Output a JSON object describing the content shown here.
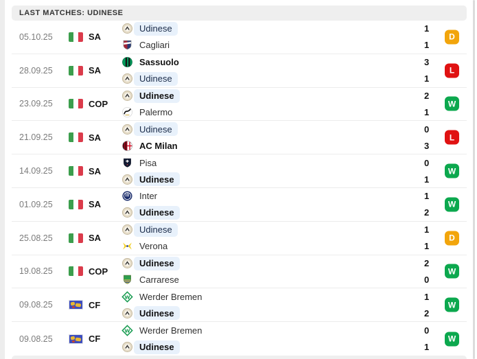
{
  "header": {
    "title": "LAST MATCHES: UDINESE"
  },
  "colors": {
    "result_badge": {
      "W": "#0CA84E",
      "L": "#E01212",
      "D": "#F2A50C"
    },
    "udinese_chip_bg": "#E8F1FB",
    "header_bg": "#EFEFEF"
  },
  "flags": {
    "italy-flag": {
      "type": "italy",
      "stripes": [
        "#3C9E4D",
        "#FFFFFF",
        "#DB3B4B"
      ]
    },
    "world-flag": {
      "type": "world"
    }
  },
  "matches": [
    {
      "date": "05.10.25",
      "competition": "SA",
      "flag": "italy-flag",
      "home": {
        "name": "Udinese",
        "logo": "udinese-logo",
        "highlight": true,
        "winner": false,
        "score": "1"
      },
      "away": {
        "name": "Cagliari",
        "logo": "cagliari-logo",
        "highlight": false,
        "winner": false,
        "score": "1"
      },
      "result": "D"
    },
    {
      "date": "28.09.25",
      "competition": "SA",
      "flag": "italy-flag",
      "home": {
        "name": "Sassuolo",
        "logo": "sassuolo-logo",
        "highlight": false,
        "winner": true,
        "score": "3"
      },
      "away": {
        "name": "Udinese",
        "logo": "udinese-logo",
        "highlight": true,
        "winner": false,
        "score": "1"
      },
      "result": "L"
    },
    {
      "date": "23.09.25",
      "competition": "COP",
      "flag": "italy-flag",
      "home": {
        "name": "Udinese",
        "logo": "udinese-logo",
        "highlight": true,
        "winner": true,
        "score": "2"
      },
      "away": {
        "name": "Palermo",
        "logo": "palermo-logo",
        "highlight": false,
        "winner": false,
        "score": "1"
      },
      "result": "W"
    },
    {
      "date": "21.09.25",
      "competition": "SA",
      "flag": "italy-flag",
      "home": {
        "name": "Udinese",
        "logo": "udinese-logo",
        "highlight": true,
        "winner": false,
        "score": "0"
      },
      "away": {
        "name": "AC Milan",
        "logo": "milan-logo",
        "highlight": false,
        "winner": true,
        "score": "3"
      },
      "result": "L"
    },
    {
      "date": "14.09.25",
      "competition": "SA",
      "flag": "italy-flag",
      "home": {
        "name": "Pisa",
        "logo": "pisa-logo",
        "highlight": false,
        "winner": false,
        "score": "0"
      },
      "away": {
        "name": "Udinese",
        "logo": "udinese-logo",
        "highlight": true,
        "winner": true,
        "score": "1"
      },
      "result": "W"
    },
    {
      "date": "01.09.25",
      "competition": "SA",
      "flag": "italy-flag",
      "home": {
        "name": "Inter",
        "logo": "inter-logo",
        "highlight": false,
        "winner": false,
        "score": "1"
      },
      "away": {
        "name": "Udinese",
        "logo": "udinese-logo",
        "highlight": true,
        "winner": true,
        "score": "2"
      },
      "result": "W"
    },
    {
      "date": "25.08.25",
      "competition": "SA",
      "flag": "italy-flag",
      "home": {
        "name": "Udinese",
        "logo": "udinese-logo",
        "highlight": true,
        "winner": false,
        "score": "1"
      },
      "away": {
        "name": "Verona",
        "logo": "verona-logo",
        "highlight": false,
        "winner": false,
        "score": "1"
      },
      "result": "D"
    },
    {
      "date": "19.08.25",
      "competition": "COP",
      "flag": "italy-flag",
      "home": {
        "name": "Udinese",
        "logo": "udinese-logo",
        "highlight": true,
        "winner": true,
        "score": "2"
      },
      "away": {
        "name": "Carrarese",
        "logo": "carrarese-logo",
        "highlight": false,
        "winner": false,
        "score": "0"
      },
      "result": "W"
    },
    {
      "date": "09.08.25",
      "competition": "CF",
      "flag": "world-flag",
      "home": {
        "name": "Werder Bremen",
        "logo": "werder-logo",
        "highlight": false,
        "winner": false,
        "score": "1"
      },
      "away": {
        "name": "Udinese",
        "logo": "udinese-logo",
        "highlight": true,
        "winner": true,
        "score": "2"
      },
      "result": "W"
    },
    {
      "date": "09.08.25",
      "competition": "CF",
      "flag": "world-flag",
      "home": {
        "name": "Werder Bremen",
        "logo": "werder-logo",
        "highlight": false,
        "winner": false,
        "score": "0"
      },
      "away": {
        "name": "Udinese",
        "logo": "udinese-logo",
        "highlight": true,
        "winner": true,
        "score": "1"
      },
      "result": "W"
    }
  ]
}
